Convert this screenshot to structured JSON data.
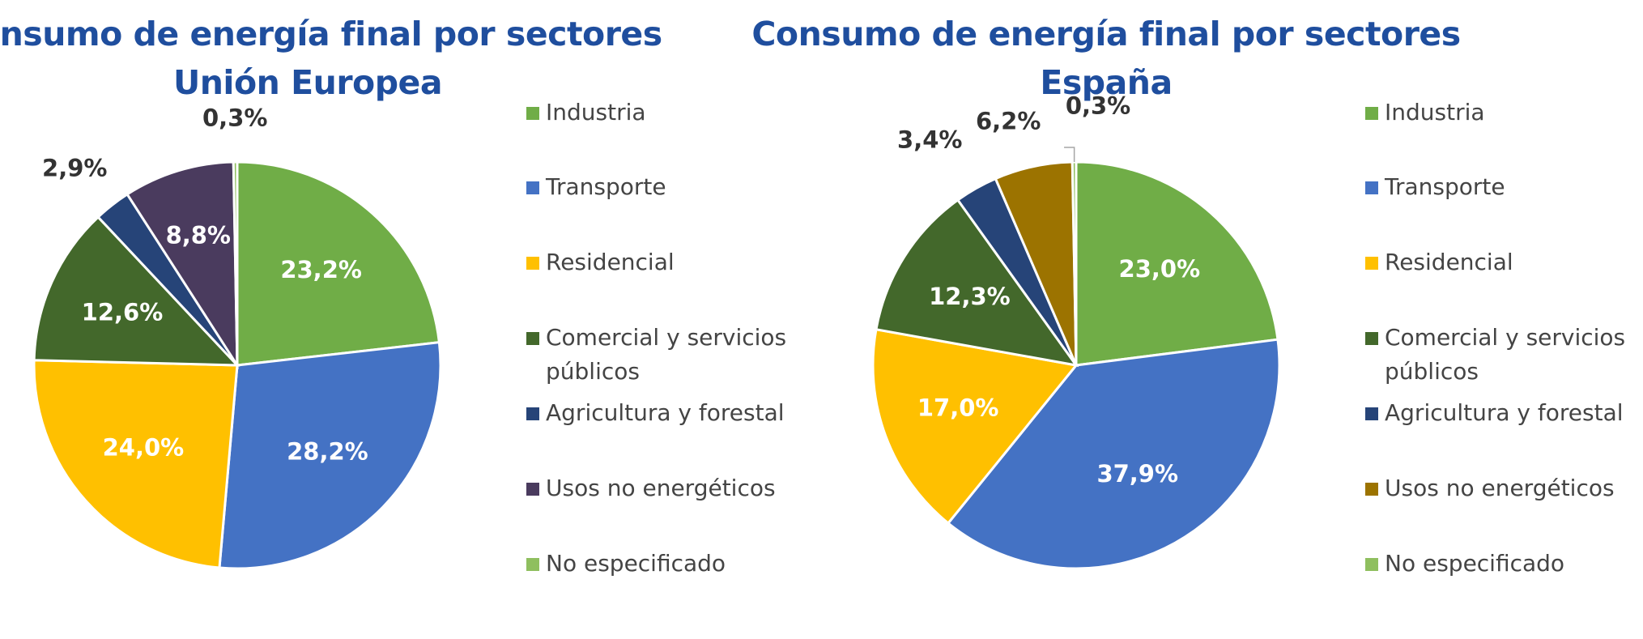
{
  "chart_data": [
    {
      "type": "pie",
      "title": "Consumo de energía final por sectores",
      "subtitle": "Unión Europea",
      "categories": [
        "Industria",
        "Transporte",
        "Residencial",
        "Comercial y servicios públicos",
        "Agricultura y forestal",
        "Usos no energéticos",
        "No especificado"
      ],
      "values": [
        23.2,
        28.2,
        24.0,
        12.6,
        2.9,
        8.8,
        0.3
      ],
      "labels": [
        "23,2%",
        "28,2%",
        "24,0%",
        "12,6%",
        "2,9%",
        "8,8%",
        "0,3%"
      ],
      "colors": [
        "#70ad47",
        "#4472c4",
        "#ffc000",
        "#43682b",
        "#264478",
        "#4a3b5e",
        "#8fbf5f"
      ],
      "legend": "right"
    },
    {
      "type": "pie",
      "title": "Consumo de energía final por sectores",
      "subtitle": "España",
      "categories": [
        "Industria",
        "Transporte",
        "Residencial",
        "Comercial y servicios públicos",
        "Agricultura y forestal",
        "Usos no energéticos",
        "No especificado"
      ],
      "values": [
        23.0,
        37.9,
        17.0,
        12.3,
        3.4,
        6.2,
        0.3
      ],
      "labels": [
        "23,0%",
        "37,9%",
        "17,0%",
        "12,3%",
        "3,4%",
        "6,2%",
        "0,3%"
      ],
      "colors": [
        "#70ad47",
        "#4472c4",
        "#ffc000",
        "#43682b",
        "#264478",
        "#9c7300",
        "#8fbf5f"
      ],
      "legend": "right"
    }
  ]
}
